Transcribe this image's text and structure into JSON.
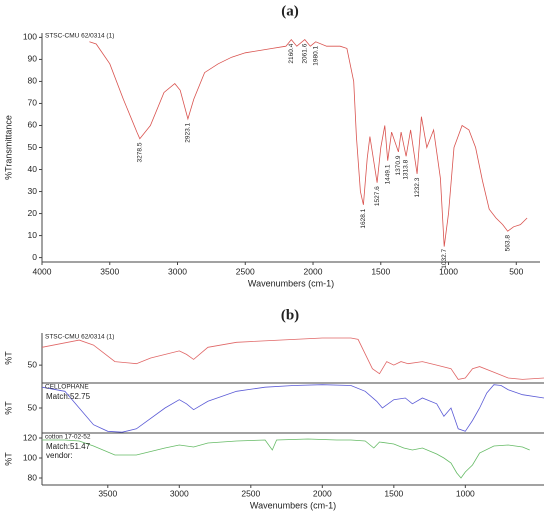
{
  "chart_data": [
    {
      "type": "line",
      "title": "(a)",
      "name": "STSC-CMU 62/0314 (1)",
      "color": "#d9534f",
      "xlabel": "Wavenumbers (cm-1)",
      "ylabel": "%Transmittance",
      "xlim": [
        4000,
        325
      ],
      "xticks": [
        4000,
        3500,
        3000,
        2500,
        2000,
        1500,
        1000,
        500
      ],
      "ylim": [
        -2,
        102
      ],
      "yticks": [
        0,
        10,
        20,
        30,
        40,
        50,
        60,
        70,
        80,
        90,
        100
      ],
      "x": [
        3650,
        3600,
        3500,
        3400,
        3300,
        3278,
        3200,
        3100,
        3020,
        2980,
        2923,
        2880,
        2800,
        2700,
        2600,
        2500,
        2400,
        2300,
        2200,
        2160,
        2120,
        2061,
        2020,
        1980,
        1900,
        1800,
        1750,
        1700,
        1680,
        1650,
        1628,
        1600,
        1580,
        1527,
        1500,
        1470,
        1449,
        1420,
        1370,
        1350,
        1313,
        1280,
        1232,
        1200,
        1160,
        1110,
        1060,
        1032,
        1000,
        960,
        900,
        850,
        800,
        750,
        700,
        650,
        600,
        563,
        520,
        470,
        420
      ],
      "values": [
        98,
        97,
        88,
        72,
        57,
        54,
        60,
        75,
        79,
        76,
        63,
        72,
        84,
        88,
        91,
        93,
        94,
        95,
        96,
        99,
        96,
        99,
        96,
        98,
        96,
        96,
        95,
        80,
        55,
        30,
        24,
        45,
        55,
        34,
        50,
        60,
        44,
        57,
        48,
        57,
        46,
        58,
        38,
        64,
        50,
        58,
        36,
        5,
        20,
        50,
        60,
        58,
        50,
        35,
        22,
        18,
        15,
        12,
        14,
        15,
        18
      ],
      "peaks": [
        3278.5,
        2923.1,
        2160.4,
        2061.6,
        1980.1,
        1628.1,
        1527.6,
        1449.1,
        1370.9,
        1313.8,
        1232.3,
        1032.7,
        563.8
      ]
    },
    {
      "type": "stacked-line",
      "title": "(b)",
      "xlabel": "Wavenumbers (cm-1)",
      "xlim": [
        3960,
        450
      ],
      "xticks": [
        3500,
        3000,
        2500,
        2000,
        1500,
        1000
      ],
      "panels": [
        {
          "name": "STSC-CMU 62/0314 (1)",
          "color": "#e06666",
          "ylabel": "%T",
          "ylim": [
            25,
            95
          ],
          "yticks": [
            50
          ],
          "notes": [],
          "x": [
            3960,
            3700,
            3600,
            3450,
            3300,
            3200,
            3000,
            2950,
            2900,
            2800,
            2600,
            2300,
            2000,
            1800,
            1750,
            1650,
            1600,
            1550,
            1500,
            1450,
            1400,
            1300,
            1200,
            1100,
            1050,
            1000,
            950,
            900,
            800,
            700,
            600,
            450
          ],
          "values": [
            75,
            85,
            78,
            55,
            52,
            60,
            70,
            65,
            58,
            75,
            82,
            85,
            88,
            88,
            86,
            45,
            38,
            55,
            50,
            55,
            52,
            55,
            50,
            45,
            30,
            32,
            45,
            48,
            40,
            32,
            30,
            32
          ]
        },
        {
          "name": "CELLOPHANE",
          "color": "#5b5bd6",
          "ylabel": "%T",
          "ylim": [
            20,
            80
          ],
          "yticks": [
            50
          ],
          "notes": [
            "Match:52.75"
          ],
          "x": [
            3960,
            3800,
            3700,
            3600,
            3500,
            3400,
            3300,
            3100,
            3000,
            2950,
            2900,
            2800,
            2600,
            2400,
            2200,
            2000,
            1800,
            1700,
            1620,
            1580,
            1500,
            1420,
            1370,
            1300,
            1200,
            1150,
            1100,
            1050,
            1000,
            950,
            900,
            850,
            800,
            750,
            700,
            600,
            450
          ],
          "values": [
            75,
            70,
            50,
            30,
            22,
            21,
            25,
            50,
            60,
            55,
            48,
            58,
            70,
            75,
            77,
            78,
            77,
            70,
            58,
            50,
            60,
            62,
            55,
            62,
            55,
            40,
            50,
            25,
            22,
            35,
            50,
            68,
            78,
            77,
            72,
            66,
            62
          ]
        },
        {
          "name": "cotton 17-02-52",
          "color": "#66bb66",
          "ylabel": "%T",
          "ylim": [
            73,
            125
          ],
          "yticks": [
            120,
            100,
            80
          ],
          "notes": [
            "Match:51.47",
            "vendor:"
          ],
          "x": [
            3960,
            3800,
            3700,
            3600,
            3450,
            3300,
            3100,
            3000,
            2900,
            2800,
            2600,
            2400,
            2350,
            2320,
            2100,
            1900,
            1800,
            1700,
            1640,
            1600,
            1500,
            1430,
            1370,
            1300,
            1200,
            1150,
            1100,
            1060,
            1030,
            1000,
            950,
            900,
            800,
            700,
            600,
            550
          ],
          "values": [
            118,
            118,
            117,
            112,
            103,
            103,
            110,
            113,
            111,
            115,
            117,
            118,
            108,
            118,
            119,
            118,
            118,
            117,
            110,
            116,
            114,
            110,
            108,
            110,
            104,
            100,
            95,
            85,
            80,
            86,
            93,
            105,
            112,
            113,
            111,
            108
          ]
        }
      ]
    }
  ]
}
